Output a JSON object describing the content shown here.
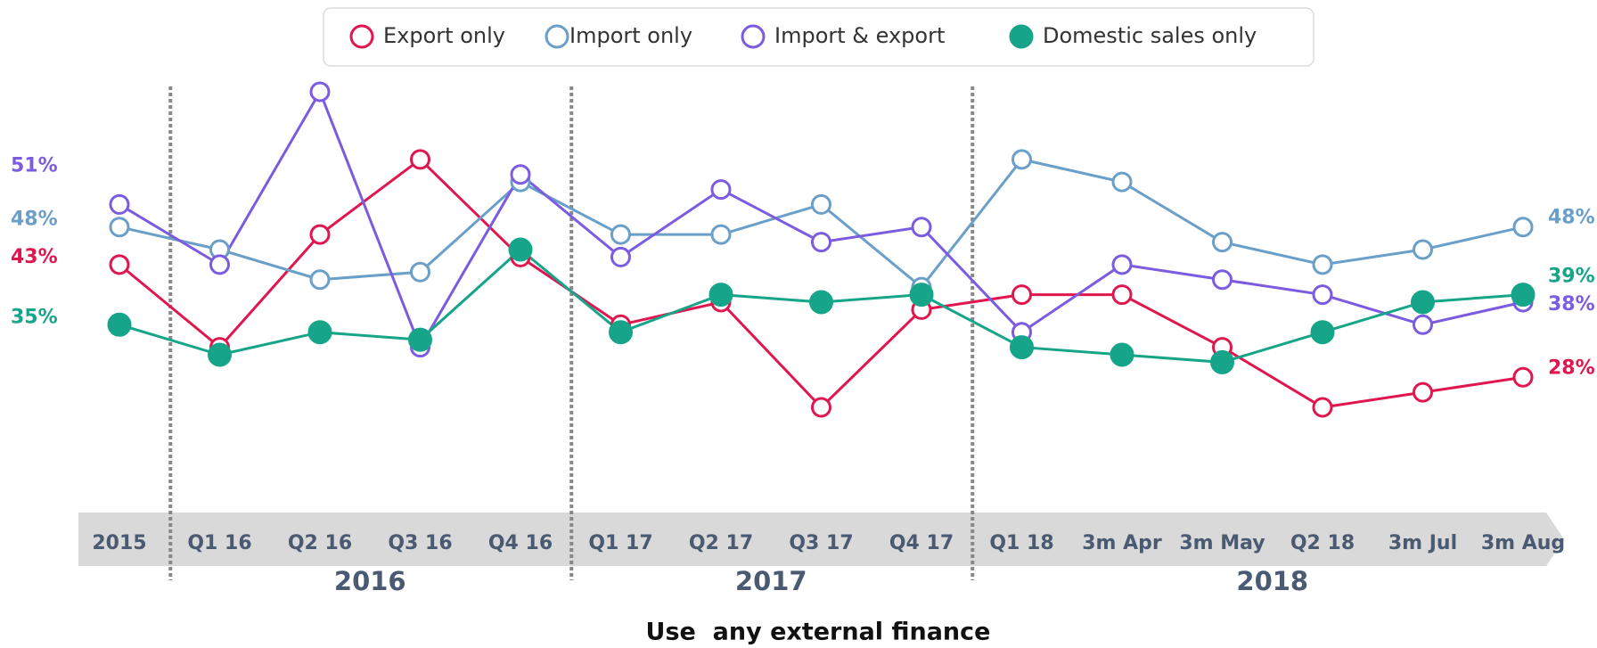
{
  "chart_data": {
    "type": "line",
    "title": "Use  any external finance",
    "categories": [
      "2015",
      "Q1 16",
      "Q2 16",
      "Q3 16",
      "Q4 16",
      "Q1 17",
      "Q2 17",
      "Q3 17",
      "Q4 17",
      "Q1 18",
      "3m Apr",
      "3m May",
      "Q2 18",
      "3m Jul",
      "3m Aug"
    ],
    "groups": [
      "2016",
      "2017",
      "2018"
    ],
    "legend": "top",
    "series": [
      {
        "name": "Export only",
        "color": "#e0174f",
        "marker": "hollow",
        "values": [
          43,
          32,
          47,
          57,
          44,
          35,
          38,
          24,
          37,
          39,
          39,
          32,
          24,
          26,
          28
        ],
        "value_labels": [
          "43%",
          null,
          null,
          null,
          null,
          null,
          null,
          null,
          null,
          null,
          null,
          null,
          null,
          null,
          "28%"
        ]
      },
      {
        "name": "Import only",
        "color": "#6a9fc9",
        "marker": "hollow",
        "values": [
          48,
          45,
          41,
          42,
          54,
          47,
          47,
          51,
          40,
          57,
          54,
          46,
          43,
          45,
          48
        ],
        "value_labels": [
          "48%",
          null,
          null,
          null,
          null,
          null,
          null,
          null,
          null,
          null,
          null,
          null,
          null,
          null,
          "48%"
        ]
      },
      {
        "name": "Import & export",
        "color": "#7b5ce0",
        "marker": "hollow",
        "values": [
          51,
          43,
          66,
          32,
          55,
          44,
          53,
          46,
          48,
          34,
          43,
          41,
          39,
          35,
          38
        ],
        "value_labels": [
          "51%",
          null,
          null,
          null,
          null,
          null,
          null,
          null,
          null,
          null,
          null,
          null,
          null,
          null,
          "38%"
        ]
      },
      {
        "name": "Domestic sales only",
        "color": "#17a589",
        "marker": "filled",
        "values": [
          35,
          31,
          34,
          33,
          45,
          34,
          39,
          38,
          39,
          32,
          31,
          30,
          34,
          38,
          39
        ],
        "value_labels": [
          "35%",
          null,
          null,
          null,
          null,
          null,
          null,
          null,
          null,
          null,
          null,
          null,
          null,
          null,
          "39%"
        ]
      }
    ]
  }
}
